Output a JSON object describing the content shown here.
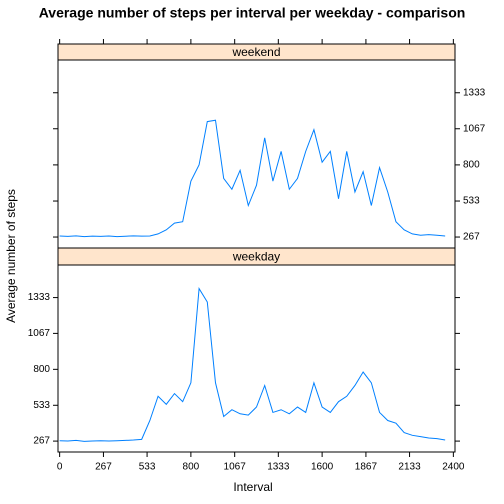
{
  "chart_data": {
    "type": "line",
    "title": "Average number of steps per interval per weekday - comparison",
    "xlabel": "Interval",
    "ylabel": "Average number of steps",
    "x": [
      0,
      50,
      100,
      150,
      200,
      250,
      300,
      350,
      400,
      450,
      500,
      550,
      600,
      650,
      700,
      750,
      800,
      850,
      900,
      950,
      1000,
      1050,
      1100,
      1150,
      1200,
      1250,
      1300,
      1350,
      1400,
      1450,
      1500,
      1550,
      1600,
      1650,
      1700,
      1750,
      1800,
      1850,
      1900,
      1950,
      2000,
      2050,
      2100,
      2150,
      2200,
      2250,
      2300,
      2350
    ],
    "series": [
      {
        "name": "weekend",
        "color": "#0080ff",
        "values": [
          275,
          272,
          276,
          270,
          274,
          272,
          275,
          270,
          273,
          276,
          274,
          275,
          290,
          320,
          370,
          380,
          680,
          800,
          1120,
          1130,
          700,
          620,
          760,
          500,
          650,
          1000,
          680,
          900,
          620,
          700,
          900,
          1060,
          820,
          900,
          550,
          900,
          600,
          750,
          500,
          780,
          600,
          380,
          320,
          290,
          280,
          285,
          280,
          275
        ]
      },
      {
        "name": "weekday",
        "color": "#0080ff",
        "values": [
          270,
          268,
          272,
          265,
          268,
          270,
          268,
          270,
          272,
          275,
          280,
          420,
          600,
          540,
          620,
          560,
          700,
          1400,
          1300,
          700,
          450,
          500,
          470,
          460,
          520,
          680,
          480,
          500,
          470,
          520,
          480,
          700,
          520,
          480,
          560,
          600,
          680,
          780,
          700,
          480,
          420,
          400,
          330,
          310,
          300,
          290,
          285,
          275
        ]
      }
    ],
    "xlim": [
      -10,
      2410
    ],
    "ylim": [
      186,
      1575
    ],
    "xticks": [
      0,
      267,
      533,
      800,
      1067,
      1333,
      1600,
      1867,
      2133,
      2400
    ],
    "yticks": [
      267,
      533,
      800,
      1067,
      1333
    ],
    "strip_color": "#ffe5cc"
  }
}
